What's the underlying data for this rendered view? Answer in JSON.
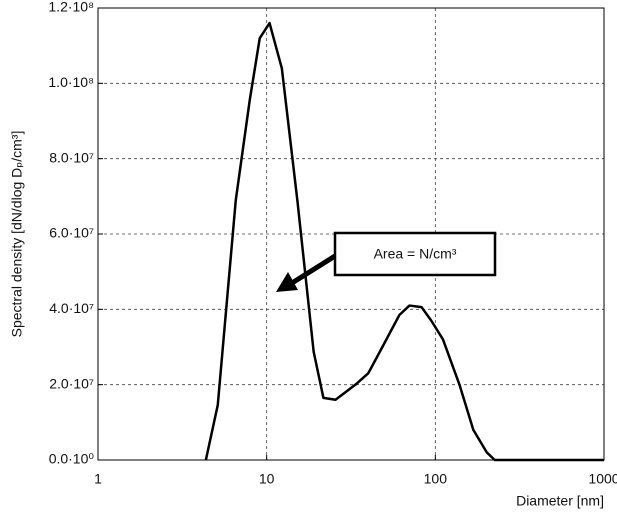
{
  "chart_data": {
    "type": "line",
    "xlabel": "Diameter [nm]",
    "ylabel": "Spectral density [dN/dlog Dₚ/cm³]",
    "annotation": "Area = N/cm³",
    "xscale": "log",
    "grid": true,
    "xlim": [
      1,
      1000
    ],
    "xticks": [
      1,
      10,
      100,
      1000
    ],
    "ylim": [
      0,
      120000000
    ],
    "yticks": [
      {
        "value": 0,
        "label": "0.0·10⁰"
      },
      {
        "value": 20000000,
        "label": "2.0·10⁷"
      },
      {
        "value": 40000000,
        "label": "4.0·10⁷"
      },
      {
        "value": 60000000,
        "label": "6.0·10⁷"
      },
      {
        "value": 80000000,
        "label": "8.0·10⁷"
      },
      {
        "value": 100000000,
        "label": "1.0·10⁸"
      },
      {
        "value": 120000000,
        "label": "1.2·10⁸"
      }
    ],
    "x": [
      4.36,
      5.13,
      6.56,
      7.94,
      9.1,
      10.4,
      12.3,
      15.2,
      19.0,
      21.7,
      25.6,
      33.6,
      40,
      49.2,
      61.2,
      70.2,
      82.8,
      94.6,
      111,
      139,
      168,
      202,
      225,
      1000
    ],
    "series": [
      {
        "color": "#000000",
        "values": [
          0,
          14600000,
          69000000,
          95600000,
          112000000,
          116000000,
          104000000,
          69000000,
          28700000,
          16500000,
          16000000,
          20000000,
          23000000,
          30500000,
          38500000,
          41000000,
          40600000,
          37000000,
          32000000,
          20000000,
          8000000,
          2000000,
          0,
          0
        ]
      }
    ]
  }
}
